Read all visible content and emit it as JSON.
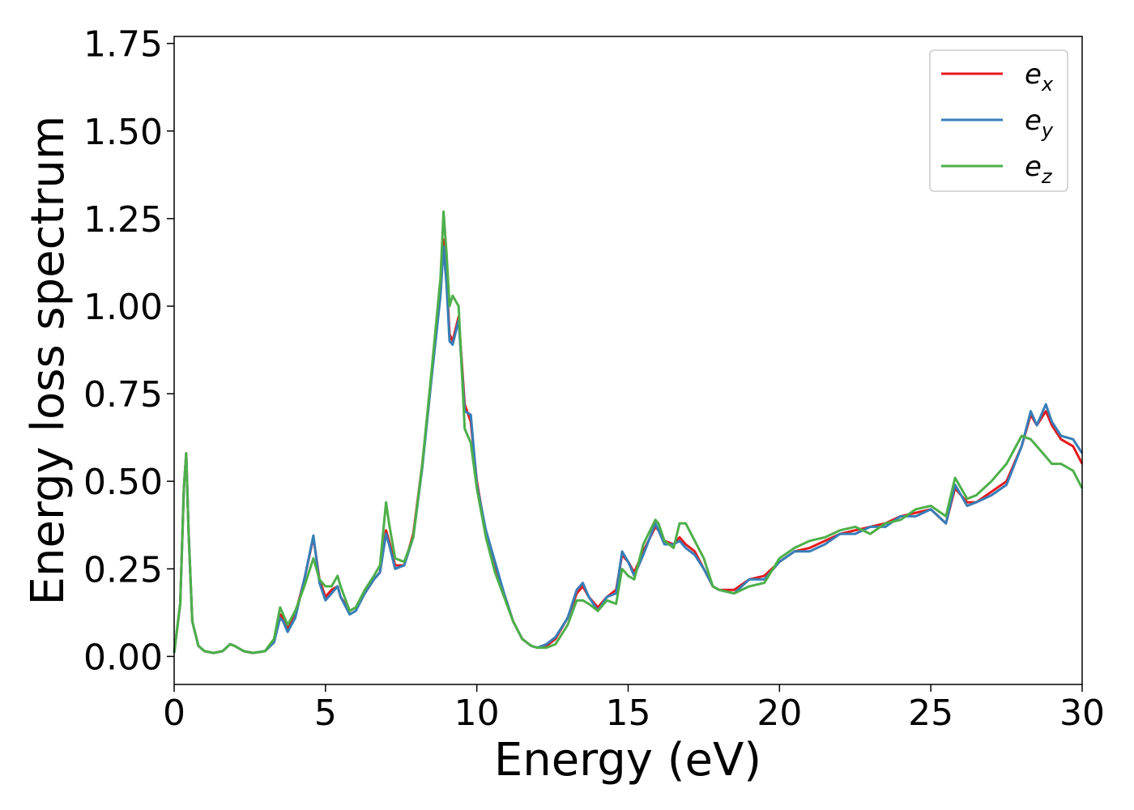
{
  "colors": {
    "ex": "#e41a1c",
    "ey": "#377eb8",
    "ez": "#4daf4a"
  },
  "chart_data": {
    "type": "line",
    "title": "",
    "xlabel": "Energy (eV)",
    "ylabel": "Energy loss spectrum",
    "xlim": [
      0,
      30
    ],
    "ylim": [
      -0.08,
      1.77
    ],
    "xticks": [
      0,
      5,
      10,
      15,
      20,
      25,
      30
    ],
    "xtick_labels": [
      "0",
      "5",
      "10",
      "15",
      "20",
      "25",
      "30"
    ],
    "yticks": [
      0.0,
      0.25,
      0.5,
      0.75,
      1.0,
      1.25,
      1.5,
      1.75
    ],
    "ytick_labels": [
      "0.00",
      "0.25",
      "0.50",
      "0.75",
      "1.00",
      "1.25",
      "1.50",
      "1.75"
    ],
    "grid": false,
    "legend": "top-right",
    "series": [
      {
        "name": "e_x",
        "legend_base": "e",
        "legend_sub": "x",
        "color": "#e41a1c",
        "x": [
          0,
          0.2,
          0.32,
          0.4,
          0.48,
          0.6,
          0.8,
          1.0,
          1.3,
          1.6,
          1.85,
          2.0,
          2.3,
          2.6,
          3.0,
          3.3,
          3.5,
          3.6,
          3.75,
          4.0,
          4.3,
          4.6,
          4.8,
          5.0,
          5.2,
          5.4,
          5.5,
          5.8,
          6.0,
          6.3,
          6.6,
          6.8,
          7.0,
          7.1,
          7.3,
          7.6,
          7.9,
          8.2,
          8.5,
          8.8,
          8.9,
          9.0,
          9.1,
          9.2,
          9.4,
          9.6,
          9.8,
          10.0,
          10.3,
          10.6,
          10.9,
          11.2,
          11.5,
          11.8,
          12.0,
          12.3,
          12.6,
          13.0,
          13.3,
          13.5,
          13.7,
          14.0,
          14.3,
          14.6,
          14.8,
          15.0,
          15.2,
          15.5,
          15.9,
          16.0,
          16.2,
          16.5,
          16.7,
          16.9,
          17.2,
          17.5,
          17.8,
          18.0,
          18.5,
          19.0,
          19.5,
          20.0,
          20.5,
          21.0,
          21.5,
          22.0,
          22.5,
          23.0,
          23.5,
          24.0,
          24.5,
          25.0,
          25.5,
          25.8,
          26.2,
          26.5,
          27.0,
          27.5,
          28.0,
          28.3,
          28.5,
          28.8,
          29.0,
          29.3,
          29.7,
          30.0
        ],
        "y": [
          0.01,
          0.15,
          0.48,
          0.58,
          0.35,
          0.1,
          0.03,
          0.015,
          0.01,
          0.015,
          0.035,
          0.03,
          0.015,
          0.01,
          0.015,
          0.04,
          0.12,
          0.11,
          0.08,
          0.12,
          0.22,
          0.34,
          0.22,
          0.17,
          0.19,
          0.2,
          0.17,
          0.13,
          0.14,
          0.18,
          0.22,
          0.24,
          0.36,
          0.33,
          0.26,
          0.26,
          0.35,
          0.55,
          0.8,
          1.05,
          1.19,
          1.08,
          0.92,
          0.9,
          0.97,
          0.72,
          0.67,
          0.5,
          0.35,
          0.26,
          0.18,
          0.1,
          0.05,
          0.03,
          0.025,
          0.03,
          0.05,
          0.11,
          0.18,
          0.2,
          0.17,
          0.14,
          0.17,
          0.19,
          0.29,
          0.27,
          0.24,
          0.3,
          0.37,
          0.36,
          0.33,
          0.32,
          0.34,
          0.32,
          0.3,
          0.25,
          0.2,
          0.19,
          0.19,
          0.22,
          0.23,
          0.27,
          0.3,
          0.31,
          0.33,
          0.35,
          0.36,
          0.37,
          0.38,
          0.4,
          0.41,
          0.42,
          0.38,
          0.48,
          0.44,
          0.44,
          0.47,
          0.5,
          0.6,
          0.69,
          0.66,
          0.7,
          0.66,
          0.62,
          0.6,
          0.55
        ]
      },
      {
        "name": "e_y",
        "legend_base": "e",
        "legend_sub": "y",
        "color": "#377eb8",
        "x": [
          0,
          0.2,
          0.32,
          0.4,
          0.48,
          0.6,
          0.8,
          1.0,
          1.3,
          1.6,
          1.85,
          2.0,
          2.3,
          2.6,
          3.0,
          3.3,
          3.5,
          3.6,
          3.75,
          4.0,
          4.3,
          4.6,
          4.8,
          5.0,
          5.2,
          5.4,
          5.5,
          5.8,
          6.0,
          6.3,
          6.6,
          6.8,
          7.0,
          7.1,
          7.3,
          7.6,
          7.9,
          8.2,
          8.5,
          8.8,
          8.9,
          9.0,
          9.1,
          9.2,
          9.4,
          9.6,
          9.8,
          10.0,
          10.3,
          10.6,
          10.9,
          11.2,
          11.5,
          11.8,
          12.0,
          12.3,
          12.6,
          13.0,
          13.3,
          13.5,
          13.7,
          14.0,
          14.3,
          14.6,
          14.8,
          15.0,
          15.2,
          15.5,
          15.9,
          16.0,
          16.2,
          16.5,
          16.7,
          16.9,
          17.2,
          17.5,
          17.8,
          18.0,
          18.5,
          19.0,
          19.5,
          20.0,
          20.5,
          21.0,
          21.5,
          22.0,
          22.5,
          23.0,
          23.5,
          24.0,
          24.5,
          25.0,
          25.5,
          25.8,
          26.2,
          26.5,
          27.0,
          27.5,
          28.0,
          28.3,
          28.5,
          28.8,
          29.0,
          29.3,
          29.7,
          30.0
        ],
        "y": [
          0.01,
          0.15,
          0.48,
          0.58,
          0.35,
          0.1,
          0.03,
          0.015,
          0.01,
          0.015,
          0.035,
          0.03,
          0.015,
          0.01,
          0.015,
          0.04,
          0.11,
          0.1,
          0.07,
          0.11,
          0.22,
          0.345,
          0.21,
          0.16,
          0.18,
          0.2,
          0.17,
          0.12,
          0.13,
          0.18,
          0.22,
          0.24,
          0.35,
          0.32,
          0.25,
          0.26,
          0.34,
          0.54,
          0.79,
          1.03,
          1.17,
          1.06,
          0.9,
          0.89,
          0.96,
          0.7,
          0.69,
          0.49,
          0.36,
          0.27,
          0.18,
          0.1,
          0.05,
          0.03,
          0.025,
          0.035,
          0.055,
          0.11,
          0.19,
          0.21,
          0.17,
          0.13,
          0.17,
          0.18,
          0.3,
          0.27,
          0.23,
          0.29,
          0.38,
          0.36,
          0.32,
          0.32,
          0.33,
          0.31,
          0.29,
          0.25,
          0.2,
          0.19,
          0.18,
          0.22,
          0.22,
          0.27,
          0.3,
          0.3,
          0.32,
          0.35,
          0.35,
          0.37,
          0.37,
          0.4,
          0.4,
          0.42,
          0.38,
          0.49,
          0.43,
          0.44,
          0.46,
          0.49,
          0.6,
          0.7,
          0.66,
          0.72,
          0.67,
          0.63,
          0.62,
          0.58
        ]
      },
      {
        "name": "e_z",
        "legend_base": "e",
        "legend_sub": "z",
        "color": "#4daf4a",
        "x": [
          0,
          0.2,
          0.32,
          0.4,
          0.48,
          0.6,
          0.8,
          1.0,
          1.3,
          1.6,
          1.85,
          2.0,
          2.3,
          2.6,
          3.0,
          3.3,
          3.5,
          3.6,
          3.75,
          4.0,
          4.3,
          4.6,
          4.8,
          5.0,
          5.2,
          5.4,
          5.5,
          5.8,
          6.0,
          6.3,
          6.6,
          6.8,
          7.0,
          7.1,
          7.3,
          7.6,
          7.9,
          8.2,
          8.5,
          8.8,
          8.9,
          9.0,
          9.1,
          9.2,
          9.4,
          9.6,
          9.8,
          10.0,
          10.3,
          10.6,
          10.9,
          11.2,
          11.5,
          11.8,
          12.0,
          12.3,
          12.6,
          13.0,
          13.3,
          13.5,
          13.7,
          14.0,
          14.3,
          14.6,
          14.8,
          15.0,
          15.2,
          15.5,
          15.9,
          16.0,
          16.2,
          16.5,
          16.7,
          16.9,
          17.2,
          17.5,
          17.8,
          18.0,
          18.5,
          19.0,
          19.5,
          20.0,
          20.5,
          21.0,
          21.5,
          22.0,
          22.5,
          23.0,
          23.5,
          24.0,
          24.5,
          25.0,
          25.5,
          25.8,
          26.2,
          26.5,
          27.0,
          27.5,
          28.0,
          28.3,
          28.5,
          28.8,
          29.0,
          29.3,
          29.7,
          30.0
        ],
        "y": [
          0.01,
          0.15,
          0.48,
          0.58,
          0.35,
          0.1,
          0.03,
          0.015,
          0.01,
          0.015,
          0.035,
          0.03,
          0.015,
          0.01,
          0.015,
          0.05,
          0.14,
          0.12,
          0.09,
          0.13,
          0.2,
          0.28,
          0.22,
          0.2,
          0.2,
          0.23,
          0.2,
          0.13,
          0.14,
          0.19,
          0.23,
          0.26,
          0.44,
          0.38,
          0.28,
          0.27,
          0.34,
          0.55,
          0.81,
          1.08,
          1.27,
          1.15,
          1.0,
          1.03,
          1.0,
          0.65,
          0.61,
          0.48,
          0.34,
          0.24,
          0.17,
          0.1,
          0.05,
          0.03,
          0.025,
          0.025,
          0.035,
          0.09,
          0.16,
          0.16,
          0.15,
          0.13,
          0.16,
          0.15,
          0.25,
          0.23,
          0.22,
          0.32,
          0.39,
          0.38,
          0.33,
          0.31,
          0.38,
          0.38,
          0.33,
          0.28,
          0.2,
          0.19,
          0.18,
          0.2,
          0.21,
          0.28,
          0.31,
          0.33,
          0.34,
          0.36,
          0.37,
          0.35,
          0.38,
          0.39,
          0.42,
          0.43,
          0.4,
          0.51,
          0.45,
          0.46,
          0.5,
          0.55,
          0.63,
          0.62,
          0.6,
          0.57,
          0.55,
          0.55,
          0.53,
          0.48
        ]
      }
    ]
  }
}
